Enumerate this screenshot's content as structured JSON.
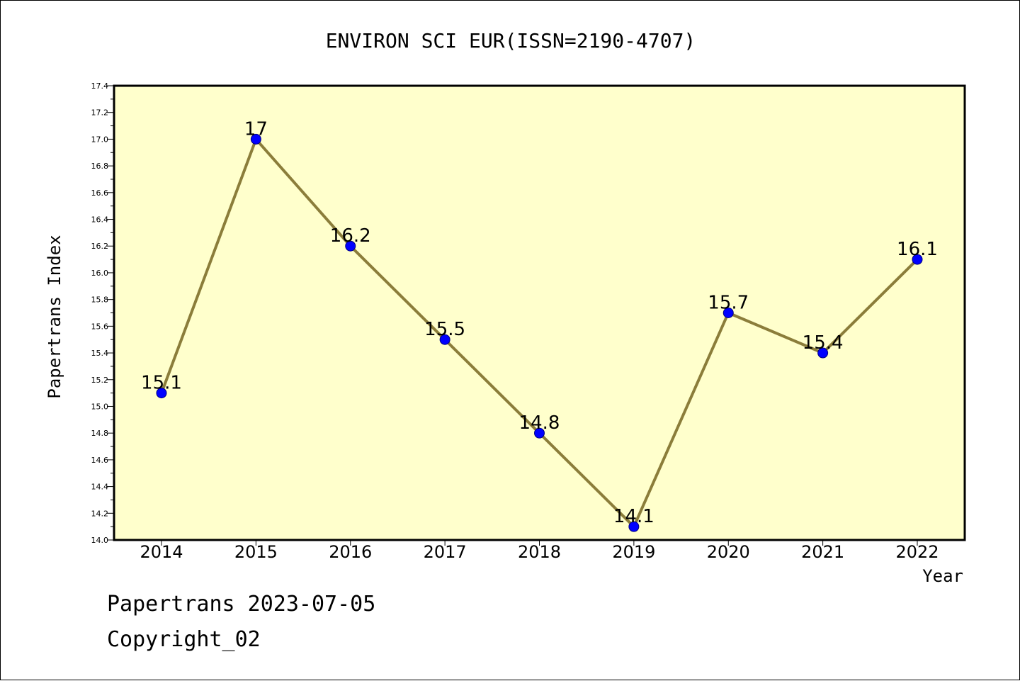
{
  "chart_data": {
    "type": "line",
    "title": "ENVIRON SCI EUR(ISSN=2190-4707)",
    "xlabel": "Year",
    "ylabel": "Papertrans Index",
    "categories": [
      "2014",
      "2015",
      "2016",
      "2017",
      "2018",
      "2019",
      "2020",
      "2021",
      "2022"
    ],
    "values": [
      15.1,
      17,
      16.2,
      15.5,
      14.8,
      14.1,
      15.7,
      15.4,
      16.1
    ],
    "data_labels": [
      "15.1",
      "17",
      "16.2",
      "15.5",
      "14.8",
      "14.1",
      "15.7",
      "15.4",
      "16.1"
    ],
    "ylim": [
      14.0,
      17.4
    ],
    "yticks": [
      "14.0",
      "14.2",
      "14.4",
      "14.6",
      "14.8",
      "15.0",
      "15.2",
      "15.4",
      "15.6",
      "15.8",
      "16.0",
      "16.2",
      "16.4",
      "16.6",
      "16.8",
      "17.0",
      "17.2",
      "17.4"
    ],
    "grid": false,
    "legend": "none",
    "colors": {
      "plot_background": "#ffffcc",
      "line": "#8b7d3a",
      "marker": "#0000ff"
    }
  },
  "footer": {
    "line1": "Papertrans 2023-07-05",
    "line2": "Copyright_02"
  }
}
